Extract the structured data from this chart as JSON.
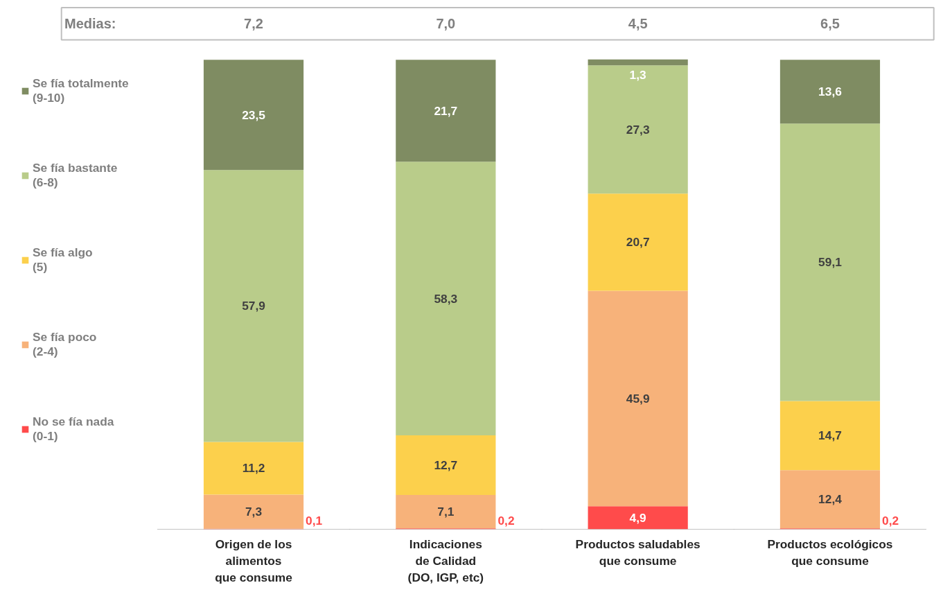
{
  "chart_data": {
    "type": "bar",
    "stacked": true,
    "legend": "left",
    "grid": false,
    "categories": [
      "Origen de los\nalimentos\nque consume",
      "Indicaciones\nde Calidad\n(DO, IGP, etc)",
      "Productos saludables\nque consume",
      "Productos ecológicos\nque consume"
    ],
    "series": [
      {
        "name": "No se fía nada\n(0-1)",
        "color": "#ff4b4b",
        "values": [
          0.1,
          0.2,
          4.9,
          0.2
        ],
        "value_labels": [
          "0,1",
          "0,2",
          "4,9",
          "0,2"
        ]
      },
      {
        "name": "Se fía poco\n(2-4)",
        "color": "#f7b27a",
        "values": [
          7.3,
          7.1,
          45.9,
          12.4
        ],
        "value_labels": [
          "7,3",
          "7,1",
          "45,9",
          "12,4"
        ]
      },
      {
        "name": "Se fía algo\n(5)",
        "color": "#fcd04c",
        "values": [
          11.2,
          12.7,
          20.7,
          14.7
        ],
        "value_labels": [
          "11,2",
          "12,7",
          "20,7",
          "14,7"
        ]
      },
      {
        "name": "Se fía bastante\n(6-8)",
        "color": "#b9cc8a",
        "values": [
          57.9,
          58.3,
          27.3,
          59.1
        ],
        "value_labels": [
          "57,9",
          "58,3",
          "27,3",
          "59,1"
        ]
      },
      {
        "name": "Se fía totalmente\n(9-10)",
        "color": "#7f8c62",
        "values": [
          23.5,
          21.7,
          1.3,
          13.6
        ],
        "value_labels": [
          "23,5",
          "21,7",
          "1,3",
          "13,6"
        ]
      }
    ],
    "annotations": [
      "Medias:",
      "7,2",
      "7,0",
      "4,5",
      "6,5"
    ]
  }
}
